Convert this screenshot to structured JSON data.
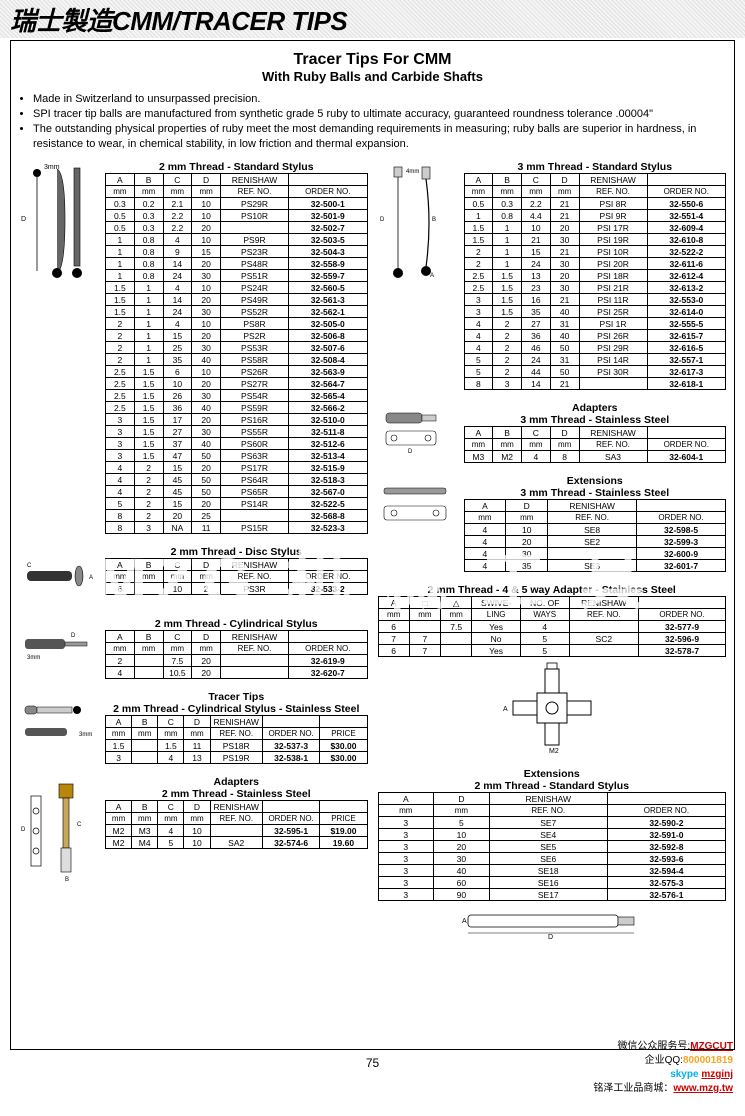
{
  "banner": "瑞士製造CMM/TRACER TIPS",
  "main_title": "Tracer Tips For CMM",
  "sub_title": "With Ruby Balls and Carbide Shafts",
  "bullets": [
    "Made in Switzerland to unsurpassed precision.",
    "SPI tracer tip balls are manufactured from synthetic grade 5 ruby to ultimate accuracy, guaranteed roundness tolerance .00004\"",
    "The outstanding physical properties of ruby meet the most demanding requirements in measuring; ruby balls are superior in hardness, in resistance to wear, in chemical stability, in low friction and thermal expansion."
  ],
  "watermark": "MZG 机 械 工 具",
  "page_number": "75",
  "footer": {
    "wechat_label": "微信公众服务号:",
    "wechat": "MZGCUT",
    "qq_label": "企业QQ:",
    "qq": "800001819",
    "skype": "mzginj",
    "site_label": "铭泽工业品商城：",
    "site": "www.mzg.tw"
  },
  "t2std": {
    "caption": "2 mm Thread - Standard Stylus",
    "headers_top": [
      "A",
      "B",
      "C",
      "D",
      "RENISHAW",
      ""
    ],
    "headers_sub": [
      "mm",
      "mm",
      "mm",
      "mm",
      "REF. NO.",
      "ORDER NO."
    ],
    "rows": [
      [
        "0.3",
        "0.2",
        "2.1",
        "10",
        "PS29R",
        "32-500-1"
      ],
      [
        "0.5",
        "0.3",
        "2.2",
        "10",
        "PS10R",
        "32-501-9"
      ],
      [
        "0.5",
        "0.3",
        "2.2",
        "20",
        "",
        "32-502-7"
      ],
      [
        "1",
        "0.8",
        "4",
        "10",
        "PS9R",
        "32-503-5"
      ],
      [
        "1",
        "0.8",
        "9",
        "15",
        "PS23R",
        "32-504-3"
      ],
      [
        "1",
        "0.8",
        "14",
        "20",
        "PS48R",
        "32-558-9"
      ],
      [
        "1",
        "0.8",
        "24",
        "30",
        "PS51R",
        "32-559-7"
      ],
      [
        "1.5",
        "1",
        "4",
        "10",
        "PS24R",
        "32-560-5"
      ],
      [
        "1.5",
        "1",
        "14",
        "20",
        "PS49R",
        "32-561-3"
      ],
      [
        "1.5",
        "1",
        "24",
        "30",
        "PS52R",
        "32-562-1"
      ],
      [
        "2",
        "1",
        "4",
        "10",
        "PS8R",
        "32-505-0"
      ],
      [
        "2",
        "1",
        "15",
        "20",
        "PS2R",
        "32-506-8"
      ],
      [
        "2",
        "1",
        "25",
        "30",
        "PS53R",
        "32-507-6"
      ],
      [
        "2",
        "1",
        "35",
        "40",
        "PS58R",
        "32-508-4"
      ],
      [
        "2.5",
        "1.5",
        "6",
        "10",
        "PS26R",
        "32-563-9"
      ],
      [
        "2.5",
        "1.5",
        "10",
        "20",
        "PS27R",
        "32-564-7"
      ],
      [
        "2.5",
        "1.5",
        "26",
        "30",
        "PS54R",
        "32-565-4"
      ],
      [
        "2.5",
        "1.5",
        "36",
        "40",
        "PS59R",
        "32-566-2"
      ],
      [
        "3",
        "1.5",
        "17",
        "20",
        "PS16R",
        "32-510-0"
      ],
      [
        "3",
        "1.5",
        "27",
        "30",
        "PS55R",
        "32-511-8"
      ],
      [
        "3",
        "1.5",
        "37",
        "40",
        "PS60R",
        "32-512-6"
      ],
      [
        "3",
        "1.5",
        "47",
        "50",
        "PS63R",
        "32-513-4"
      ],
      [
        "4",
        "2",
        "15",
        "20",
        "PS17R",
        "32-515-9"
      ],
      [
        "4",
        "2",
        "45",
        "50",
        "PS64R",
        "32-518-3"
      ],
      [
        "4",
        "2",
        "45",
        "50",
        "PS65R",
        "32-567-0"
      ],
      [
        "5",
        "2",
        "15",
        "20",
        "PS14R",
        "32-522-5"
      ],
      [
        "8",
        "2",
        "20",
        "25",
        "",
        "32-568-8"
      ],
      [
        "8",
        "3",
        "NA",
        "11",
        "PS15R",
        "32-523-3"
      ]
    ]
  },
  "t2disc": {
    "caption": "2 mm Thread - Disc Stylus",
    "headers_top": [
      "A",
      "B",
      "C",
      "D",
      "RENISHAW",
      ""
    ],
    "headers_sub": [
      "mm",
      "mm",
      "mm",
      "mm",
      "REF. NO.",
      "ORDER NO."
    ],
    "rows": [
      [
        "6",
        "",
        "10",
        "2",
        "PS3R",
        "32-533-2"
      ]
    ]
  },
  "t2cyl": {
    "caption": "2 mm Thread - Cylindrical Stylus",
    "headers_top": [
      "A",
      "B",
      "C",
      "D",
      "RENISHAW",
      ""
    ],
    "headers_sub": [
      "mm",
      "mm",
      "mm",
      "mm",
      "REF. NO.",
      "ORDER NO."
    ],
    "rows": [
      [
        "2",
        "",
        "7.5",
        "20",
        "",
        "32-619-9"
      ],
      [
        "4",
        "",
        "10.5",
        "20",
        "",
        "32-620-7"
      ]
    ]
  },
  "t2cylss": {
    "caption_top": "Tracer Tips",
    "caption": "2 mm Thread - Cylindrical Stylus - Stainless Steel",
    "headers_top": [
      "A",
      "B",
      "C",
      "D",
      "RENISHAW",
      "",
      ""
    ],
    "headers_sub": [
      "mm",
      "mm",
      "mm",
      "mm",
      "REF. NO.",
      "ORDER NO.",
      "PRICE"
    ],
    "rows": [
      [
        "1.5",
        "",
        "1.5",
        "11",
        "PS18R",
        "32-537-3",
        "$30.00"
      ],
      [
        "3",
        "",
        "4",
        "13",
        "PS19R",
        "32-538-1",
        "$30.00"
      ]
    ]
  },
  "t2adapt": {
    "caption_top": "Adapters",
    "caption": "2 mm Thread - Stainless Steel",
    "headers_top": [
      "A",
      "B",
      "C",
      "D",
      "RENISHAW",
      "",
      ""
    ],
    "headers_sub": [
      "mm",
      "mm",
      "mm",
      "mm",
      "REF. NO.",
      "ORDER NO.",
      "PRICE"
    ],
    "rows": [
      [
        "M2",
        "M3",
        "4",
        "10",
        "",
        "32-595-1",
        "$19.00"
      ],
      [
        "M2",
        "M4",
        "5",
        "10",
        "SA2",
        "32-574-6",
        "19.60"
      ]
    ]
  },
  "t3std": {
    "caption": "3 mm Thread - Standard Stylus",
    "headers_top": [
      "A",
      "B",
      "C",
      "D",
      "RENISHAW",
      ""
    ],
    "headers_sub": [
      "mm",
      "mm",
      "mm",
      "mm",
      "REF. NO.",
      "ORDER NO."
    ],
    "rows": [
      [
        "0.5",
        "0.3",
        "2.2",
        "21",
        "PSI 8R",
        "32-550-6"
      ],
      [
        "1",
        "0.8",
        "4.4",
        "21",
        "PSI 9R",
        "32-551-4"
      ],
      [
        "1.5",
        "1",
        "10",
        "20",
        "PSI 17R",
        "32-609-4"
      ],
      [
        "1.5",
        "1",
        "21",
        "30",
        "PSI 19R",
        "32-610-8"
      ],
      [
        "2",
        "1",
        "15",
        "21",
        "PSI 10R",
        "32-522-2"
      ],
      [
        "2",
        "1",
        "24",
        "30",
        "PSI 20R",
        "32-611-6"
      ],
      [
        "2.5",
        "1.5",
        "13",
        "20",
        "PSI 18R",
        "32-612-4"
      ],
      [
        "2.5",
        "1.5",
        "23",
        "30",
        "PSI 21R",
        "32-613-2"
      ],
      [
        "3",
        "1.5",
        "16",
        "21",
        "PSI 11R",
        "32-553-0"
      ],
      [
        "3",
        "1.5",
        "35",
        "40",
        "PSI 25R",
        "32-614-0"
      ],
      [
        "4",
        "2",
        "27",
        "31",
        "PSI 1R",
        "32-555-5"
      ],
      [
        "4",
        "2",
        "36",
        "40",
        "PSI 26R",
        "32-615-7"
      ],
      [
        "4",
        "2",
        "46",
        "50",
        "PSI 29R",
        "32-616-5"
      ],
      [
        "5",
        "2",
        "24",
        "31",
        "PSI 14R",
        "32-557-1"
      ],
      [
        "5",
        "2",
        "44",
        "50",
        "PSI 30R",
        "32-617-3"
      ],
      [
        "8",
        "3",
        "14",
        "21",
        "",
        "32-618-1"
      ]
    ]
  },
  "t3adapt": {
    "caption_top": "Adapters",
    "caption": "3 mm Thread - Stainless Steel",
    "headers_top": [
      "A",
      "B",
      "C",
      "D",
      "RENISHAW",
      ""
    ],
    "headers_sub": [
      "mm",
      "mm",
      "mm",
      "mm",
      "REF. NO.",
      "ORDER NO."
    ],
    "rows": [
      [
        "M3",
        "M2",
        "4",
        "8",
        "SA3",
        "32-604-1"
      ]
    ]
  },
  "t3ext": {
    "caption_top": "Extensions",
    "caption": "3 mm Thread - Stainless Steel",
    "headers_top": [
      "A",
      "D",
      "RENISHAW",
      ""
    ],
    "headers_sub": [
      "mm",
      "mm",
      "REF. NO.",
      "ORDER NO."
    ],
    "rows": [
      [
        "4",
        "10",
        "SE8",
        "32-598-5"
      ],
      [
        "4",
        "20",
        "SE2",
        "32-599-3"
      ],
      [
        "4",
        "30",
        "",
        "32-600-9"
      ],
      [
        "4",
        "35",
        "SE3",
        "32-601-7"
      ]
    ]
  },
  "t2way": {
    "caption": "2 mm Thread - 4 & 5 way Adapter - Stainless Steel",
    "headers_top": [
      "A",
      "□",
      "△",
      "SWIVE-",
      "NO. OF",
      "RENISHAW",
      ""
    ],
    "headers_sub": [
      "mm",
      "mm",
      "mm",
      "LING",
      "WAYS",
      "REF. NO.",
      "ORDER NO."
    ],
    "rows": [
      [
        "6",
        "",
        "7.5",
        "Yes",
        "4",
        "",
        "32-577-9"
      ],
      [
        "7",
        "7",
        "",
        "No",
        "5",
        "SC2",
        "32-596-9"
      ],
      [
        "6",
        "7",
        "",
        "Yes",
        "5",
        "",
        "32-578-7"
      ]
    ]
  },
  "t2ext": {
    "caption_top": "Extensions",
    "caption": "2 mm Thread - Standard Stylus",
    "headers_top": [
      "A",
      "D",
      "RENISHAW",
      ""
    ],
    "headers_sub": [
      "mm",
      "mm",
      "REF. NO.",
      "ORDER NO."
    ],
    "rows": [
      [
        "3",
        "5",
        "SE7",
        "32-590-2"
      ],
      [
        "3",
        "10",
        "SE4",
        "32-591-0"
      ],
      [
        "3",
        "20",
        "SE5",
        "32-592-8"
      ],
      [
        "3",
        "30",
        "SE6",
        "32-593-6"
      ],
      [
        "3",
        "40",
        "SE18",
        "32-594-4"
      ],
      [
        "3",
        "60",
        "SE16",
        "32-575-3"
      ],
      [
        "3",
        "90",
        "SE17",
        "32-576-1"
      ]
    ]
  }
}
